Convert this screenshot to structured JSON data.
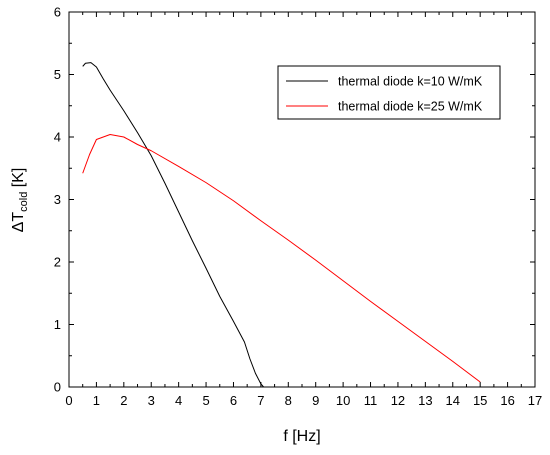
{
  "chart_data": {
    "type": "line",
    "title": "",
    "xlabel": "f [Hz]",
    "ylabel": {
      "main": "ΔT",
      "subscript": "cold",
      "unit": " [K]"
    },
    "xlim": [
      0,
      17
    ],
    "ylim": [
      0,
      6
    ],
    "xticks": [
      "0",
      "1",
      "2",
      "3",
      "4",
      "5",
      "6",
      "7",
      "8",
      "9",
      "10",
      "11",
      "12",
      "13",
      "14",
      "15",
      "16",
      "17"
    ],
    "yticks": [
      "0",
      "1",
      "2",
      "3",
      "4",
      "5",
      "6"
    ],
    "grid": false,
    "legend_position": "top-right",
    "series": [
      {
        "name": "thermal diode k=10 W/mK",
        "color": "#000000",
        "points": [
          [
            0.5,
            5.13
          ],
          [
            0.6,
            5.18
          ],
          [
            0.8,
            5.19
          ],
          [
            1.0,
            5.12
          ],
          [
            1.25,
            4.93
          ],
          [
            1.5,
            4.75
          ],
          [
            2.0,
            4.42
          ],
          [
            2.5,
            4.07
          ],
          [
            3.0,
            3.7
          ],
          [
            3.5,
            3.26
          ],
          [
            4.0,
            2.8
          ],
          [
            4.5,
            2.34
          ],
          [
            5.0,
            1.9
          ],
          [
            5.5,
            1.45
          ],
          [
            6.0,
            1.05
          ],
          [
            6.4,
            0.72
          ],
          [
            6.6,
            0.45
          ],
          [
            6.8,
            0.22
          ],
          [
            7.0,
            0.05
          ],
          [
            7.1,
            0.0
          ]
        ]
      },
      {
        "name": "thermal diode k=25 W/mK",
        "color": "#ff0000",
        "points": [
          [
            0.5,
            3.42
          ],
          [
            0.75,
            3.72
          ],
          [
            1.0,
            3.96
          ],
          [
            1.5,
            4.04
          ],
          [
            2.0,
            4.0
          ],
          [
            2.5,
            3.88
          ],
          [
            3.0,
            3.78
          ],
          [
            4.0,
            3.53
          ],
          [
            5.0,
            3.27
          ],
          [
            6.0,
            2.98
          ],
          [
            7.0,
            2.66
          ],
          [
            8.0,
            2.35
          ],
          [
            9.0,
            2.03
          ],
          [
            10.0,
            1.7
          ],
          [
            11.0,
            1.37
          ],
          [
            12.0,
            1.05
          ],
          [
            13.0,
            0.73
          ],
          [
            14.0,
            0.41
          ],
          [
            15.0,
            0.08
          ]
        ]
      }
    ]
  }
}
